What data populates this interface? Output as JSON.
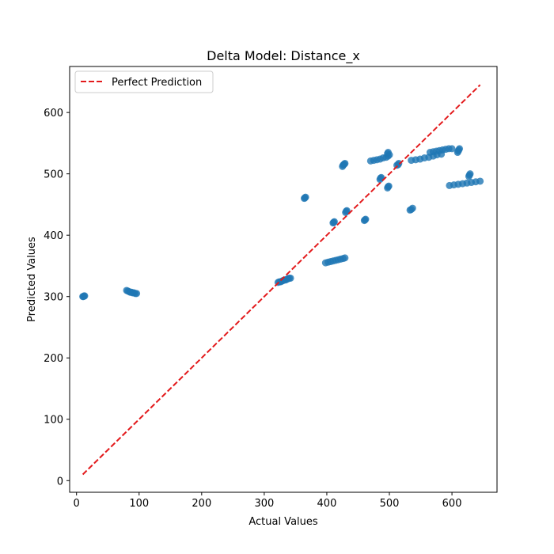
{
  "chart_data": {
    "type": "scatter",
    "title": "Delta Model: Distance_x",
    "xlabel": "Actual Values",
    "ylabel": "Predicted Values",
    "xlim": [
      -11,
      672
    ],
    "ylim": [
      -19,
      675
    ],
    "xticks": [
      0,
      100,
      200,
      300,
      400,
      500,
      600
    ],
    "yticks": [
      0,
      100,
      200,
      300,
      400,
      500,
      600
    ],
    "xtick_labels": [
      "0",
      "100",
      "200",
      "300",
      "400",
      "500",
      "600"
    ],
    "ytick_labels": [
      "0",
      "100",
      "200",
      "300",
      "400",
      "500",
      "600"
    ],
    "grid": false,
    "legend": {
      "placement": "upper left",
      "entries": [
        "Perfect Prediction"
      ]
    },
    "colors": {
      "points": "#1f77b4",
      "reference_line": "#e31a1c"
    },
    "reference_line": {
      "name": "Perfect Prediction",
      "style": "dashed",
      "from": [
        10,
        10
      ],
      "to": [
        645,
        645
      ]
    },
    "series": [
      {
        "points": [
          [
            10,
            300
          ],
          [
            11,
            300
          ],
          [
            12,
            301
          ],
          [
            13,
            301
          ],
          [
            80,
            310
          ],
          [
            82,
            309
          ],
          [
            84,
            308
          ],
          [
            86,
            307
          ],
          [
            88,
            307
          ],
          [
            90,
            306
          ],
          [
            92,
            306
          ],
          [
            94,
            305
          ],
          [
            96,
            305
          ],
          [
            322,
            323
          ],
          [
            324,
            324
          ],
          [
            326,
            324
          ],
          [
            328,
            325
          ],
          [
            330,
            326
          ],
          [
            332,
            327
          ],
          [
            334,
            327
          ],
          [
            336,
            328
          ],
          [
            338,
            329
          ],
          [
            340,
            330
          ],
          [
            342,
            330
          ],
          [
            364,
            460
          ],
          [
            365,
            461
          ],
          [
            366,
            462
          ],
          [
            398,
            355
          ],
          [
            402,
            356
          ],
          [
            406,
            357
          ],
          [
            410,
            358
          ],
          [
            414,
            359
          ],
          [
            418,
            360
          ],
          [
            422,
            361
          ],
          [
            426,
            362
          ],
          [
            429,
            363
          ],
          [
            410,
            420
          ],
          [
            411,
            421
          ],
          [
            412,
            422
          ],
          [
            425,
            512
          ],
          [
            426,
            514
          ],
          [
            427,
            515
          ],
          [
            428,
            516
          ],
          [
            429,
            517
          ],
          [
            430,
            437
          ],
          [
            431,
            439
          ],
          [
            432,
            440
          ],
          [
            460,
            424
          ],
          [
            461,
            425
          ],
          [
            462,
            426
          ],
          [
            470,
            521
          ],
          [
            475,
            522
          ],
          [
            480,
            523
          ],
          [
            485,
            524
          ],
          [
            490,
            526
          ],
          [
            495,
            527
          ],
          [
            498,
            529
          ],
          [
            500,
            531
          ],
          [
            497,
            533
          ],
          [
            498,
            535
          ],
          [
            485,
            491
          ],
          [
            486,
            493
          ],
          [
            487,
            494
          ],
          [
            497,
            477
          ],
          [
            498,
            479
          ],
          [
            499,
            480
          ],
          [
            512,
            514
          ],
          [
            514,
            515
          ],
          [
            515,
            517
          ],
          [
            533,
            441
          ],
          [
            535,
            442
          ],
          [
            537,
            444
          ],
          [
            535,
            522
          ],
          [
            542,
            523
          ],
          [
            549,
            524
          ],
          [
            556,
            526
          ],
          [
            563,
            527
          ],
          [
            570,
            529
          ],
          [
            576,
            531
          ],
          [
            583,
            532
          ],
          [
            565,
            535
          ],
          [
            570,
            536
          ],
          [
            575,
            537
          ],
          [
            580,
            538
          ],
          [
            585,
            539
          ],
          [
            590,
            540
          ],
          [
            595,
            541
          ],
          [
            600,
            541
          ],
          [
            596,
            481
          ],
          [
            603,
            482
          ],
          [
            610,
            483
          ],
          [
            617,
            484
          ],
          [
            624,
            485
          ],
          [
            631,
            486
          ],
          [
            638,
            487
          ],
          [
            645,
            488
          ],
          [
            609,
            535
          ],
          [
            610,
            537
          ],
          [
            611,
            539
          ],
          [
            612,
            541
          ],
          [
            627,
            496
          ],
          [
            628,
            498
          ],
          [
            629,
            500
          ]
        ]
      }
    ]
  }
}
